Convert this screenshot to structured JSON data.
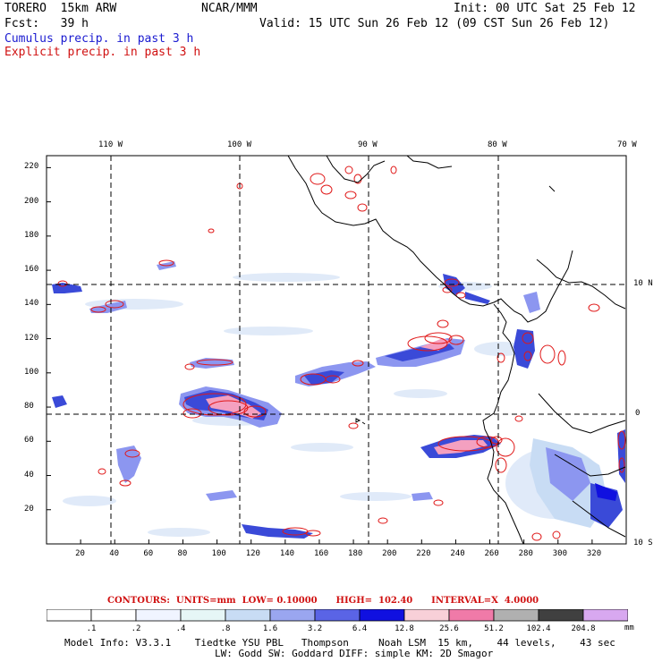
{
  "header": {
    "model": "TORERO  15km ARW",
    "org": "NCAR/MMM",
    "init": "Init: 00 UTC Sat 25 Feb 12",
    "fcst": "Fcst:   39 h",
    "valid": "Valid: 15 UTC Sun 26 Feb 12 (09 CST Sun 26 Feb 12)",
    "cumulus": "Cumulus precip. in past 3 h",
    "explicit": "Explicit precip. in past 3 h"
  },
  "map": {
    "top_lon_labels": [
      "110 W",
      "100 W",
      "90 W",
      "80 W",
      "70 W"
    ],
    "right_lat_labels": [
      "10 N",
      "0",
      "10 S"
    ],
    "x_ticks": [
      "20",
      "40",
      "60",
      "80",
      "100",
      "120",
      "140",
      "160",
      "180",
      "200",
      "220",
      "240",
      "260",
      "280",
      "300",
      "320"
    ],
    "y_ticks": [
      "20",
      "40",
      "60",
      "80",
      "100",
      "120",
      "140",
      "160",
      "180",
      "200",
      "220"
    ],
    "colors": {
      "cumulus_light": "#c8dcf4",
      "cumulus_mid": "#8c96f0",
      "cumulus_strong": "#3a4ad8",
      "cumulus_max": "#1010e0",
      "explicit_contour": "#e01818",
      "explicit_fill": "#f4a0c0",
      "coast": "#000000",
      "grid": "#000000"
    }
  },
  "contours_line": {
    "label": "CONTOURS:  UNITS=mm  LOW= 0.10000      HIGH=  102.40      INTERVAL=X  4.0000"
  },
  "colorbar": {
    "labels": [
      ".1",
      ".2",
      ".4",
      ".8",
      "1.6",
      "3.2",
      "6.4",
      "12.8",
      "25.6",
      "51.2",
      "102.4",
      "204.8"
    ],
    "unit": "mm",
    "colors": [
      "#ffffff",
      "#ffffff",
      "#f0f4ff",
      "#e6f6f6",
      "#c8dcf4",
      "#9aa6f0",
      "#5a64e6",
      "#1010e0",
      "#f8d0d8",
      "#f07aa8",
      "#b0b0b0",
      "#404040",
      "#d8a8f0"
    ]
  },
  "footer": {
    "line1": "Model Info: V3.3.1    Tiedtke YSU PBL   Thompson     Noah LSM  15 km,    44 levels,    43 sec",
    "line2": "LW: Godd SW: Goddard DIFF: simple KM: 2D Smagor"
  }
}
